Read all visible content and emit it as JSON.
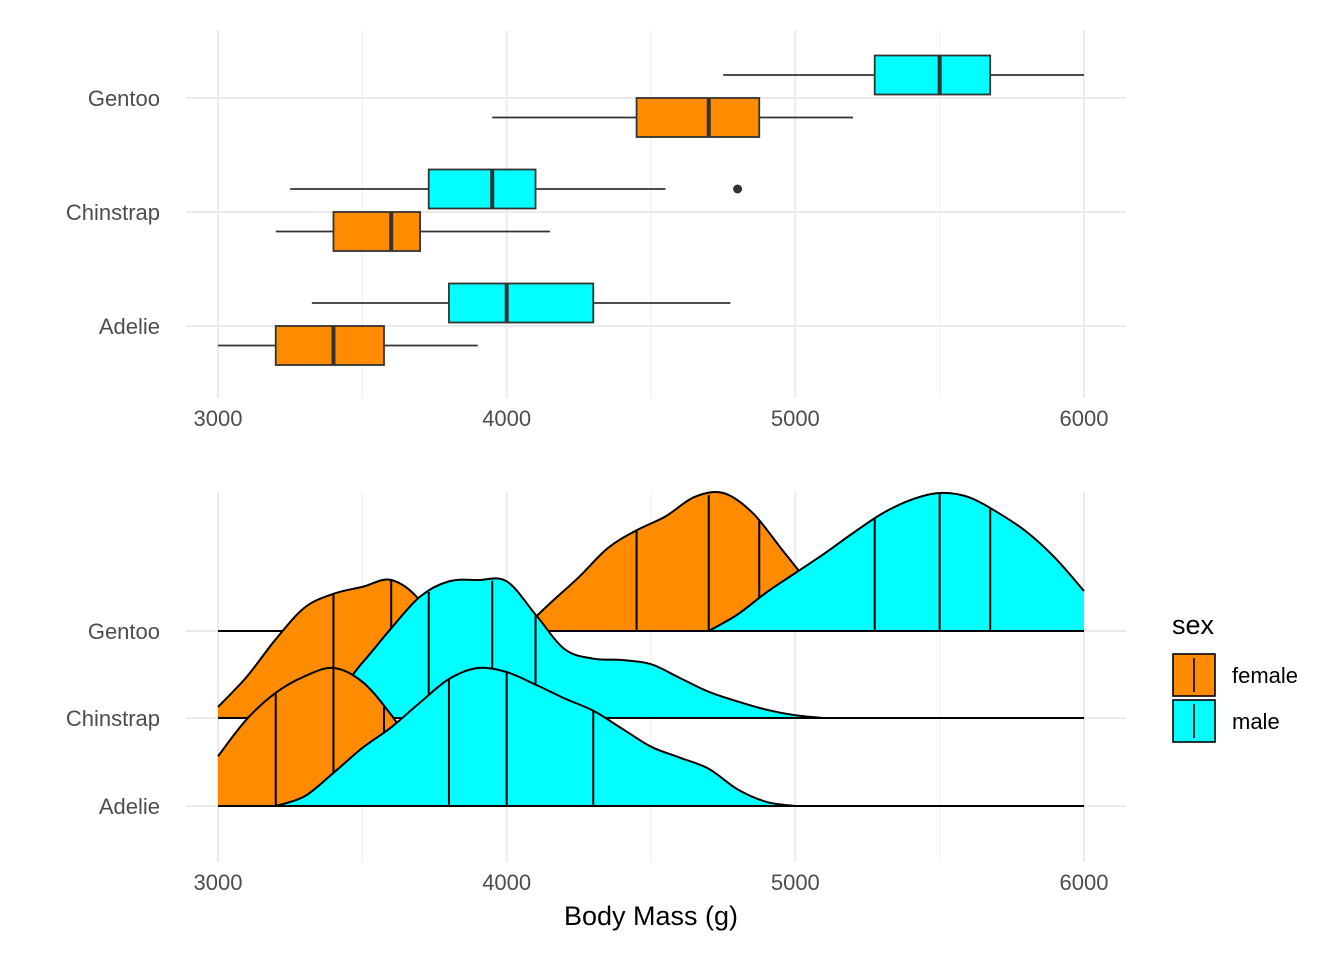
{
  "chart_data": [
    {
      "type": "boxplot",
      "orientation": "horizontal",
      "categories": [
        "Adelie",
        "Chinstrap",
        "Gentoo"
      ],
      "x_ticks": [
        3000,
        4000,
        5000,
        6000
      ],
      "xlim": [
        2900,
        6150
      ],
      "grid": true,
      "series": [
        {
          "name": "female",
          "color": "#FF8C00",
          "boxes": [
            {
              "category": "Adelie",
              "min": 3000,
              "q1": 3200,
              "median": 3400,
              "q3": 3575,
              "max": 3900,
              "outliers": []
            },
            {
              "category": "Chinstrap",
              "min": 3200,
              "q1": 3400,
              "median": 3600,
              "q3": 3700,
              "max": 4150,
              "outliers": []
            },
            {
              "category": "Gentoo",
              "min": 3950,
              "q1": 4450,
              "median": 4700,
              "q3": 4875,
              "max": 5200,
              "outliers": []
            }
          ]
        },
        {
          "name": "male",
          "color": "#00FFFF",
          "boxes": [
            {
              "category": "Adelie",
              "min": 3325,
              "q1": 3800,
              "median": 4000,
              "q3": 4300,
              "max": 4775,
              "outliers": []
            },
            {
              "category": "Chinstrap",
              "min": 3250,
              "q1": 3730,
              "median": 3950,
              "q3": 4100,
              "max": 4550,
              "outliers": [
                4800
              ]
            },
            {
              "category": "Gentoo",
              "min": 4750,
              "q1": 5275,
              "median": 5500,
              "q3": 5675,
              "max": 6000,
              "outliers": []
            }
          ]
        }
      ]
    },
    {
      "type": "density-ridges",
      "categories": [
        "Adelie",
        "Chinstrap",
        "Gentoo"
      ],
      "x_ticks": [
        3000,
        4000,
        5000,
        6000
      ],
      "xlim": [
        2900,
        6150
      ],
      "xlabel": "Body Mass (g)",
      "grid": true,
      "quantile_lines": [
        0.25,
        0.5,
        0.75
      ],
      "legend": {
        "title": "sex",
        "position": "right",
        "entries": [
          "female",
          "male"
        ]
      },
      "series": [
        {
          "name": "female",
          "color": "#FF8C00",
          "ridges": [
            {
              "category": "Adelie",
              "quartiles": [
                3200,
                3400,
                3575
              ],
              "x": [
                3000,
                3100,
                3200,
                3300,
                3400,
                3500,
                3600,
                3700,
                3800,
                3900
              ],
              "density": [
                0.36,
                0.63,
                0.82,
                0.94,
                1.0,
                0.9,
                0.66,
                0.36,
                0.13,
                0.0
              ]
            },
            {
              "category": "Chinstrap",
              "quartiles": [
                3400,
                3600,
                3700
              ],
              "x": [
                3000,
                3100,
                3200,
                3300,
                3400,
                3500,
                3600,
                3700,
                3800,
                3900
              ],
              "density": [
                0.08,
                0.3,
                0.57,
                0.8,
                0.9,
                0.95,
                1.0,
                0.85,
                0.5,
                0.22
              ]
            },
            {
              "category": "Gentoo",
              "quartiles": [
                4450,
                4700,
                4875
              ],
              "x": [
                4050,
                4150,
                4250,
                4350,
                4450,
                4550,
                4650,
                4750,
                4850,
                4950,
                5050,
                5150
              ],
              "density": [
                0.0,
                0.2,
                0.39,
                0.6,
                0.73,
                0.83,
                0.97,
                1.0,
                0.86,
                0.6,
                0.33,
                0.0
              ]
            }
          ]
        },
        {
          "name": "male",
          "color": "#00FFFF",
          "ridges": [
            {
              "category": "Adelie",
              "quartiles": [
                3800,
                4000,
                4300
              ],
              "x": [
                3200,
                3300,
                3400,
                3500,
                3600,
                3700,
                3800,
                3900,
                4000,
                4100,
                4200,
                4300,
                4400,
                4500,
                4600,
                4700,
                4800,
                4900,
                5000
              ],
              "density": [
                0.0,
                0.07,
                0.24,
                0.42,
                0.57,
                0.75,
                0.92,
                1.0,
                0.97,
                0.88,
                0.78,
                0.69,
                0.56,
                0.43,
                0.35,
                0.27,
                0.12,
                0.03,
                0.0
              ]
            },
            {
              "category": "Chinstrap",
              "quartiles": [
                3730,
                3950,
                4100
              ],
              "x": [
                3000,
                3200,
                3400,
                3500,
                3600,
                3700,
                3800,
                3900,
                4000,
                4100,
                4200,
                4300,
                4400,
                4500,
                4600,
                4700,
                4800,
                4900,
                5000,
                5100
              ],
              "density": [
                0.0,
                0.02,
                0.18,
                0.4,
                0.65,
                0.88,
                0.99,
                1.0,
                0.99,
                0.75,
                0.5,
                0.43,
                0.42,
                0.39,
                0.29,
                0.19,
                0.12,
                0.06,
                0.02,
                0.0
              ]
            },
            {
              "category": "Gentoo",
              "quartiles": [
                5275,
                5500,
                5675
              ],
              "x": [
                4700,
                4800,
                4900,
                5000,
                5100,
                5200,
                5300,
                5400,
                5500,
                5600,
                5700,
                5800,
                5900,
                6000
              ],
              "density": [
                0.0,
                0.12,
                0.28,
                0.42,
                0.56,
                0.71,
                0.85,
                0.95,
                1.0,
                0.97,
                0.86,
                0.72,
                0.53,
                0.29
              ]
            }
          ]
        }
      ]
    }
  ]
}
